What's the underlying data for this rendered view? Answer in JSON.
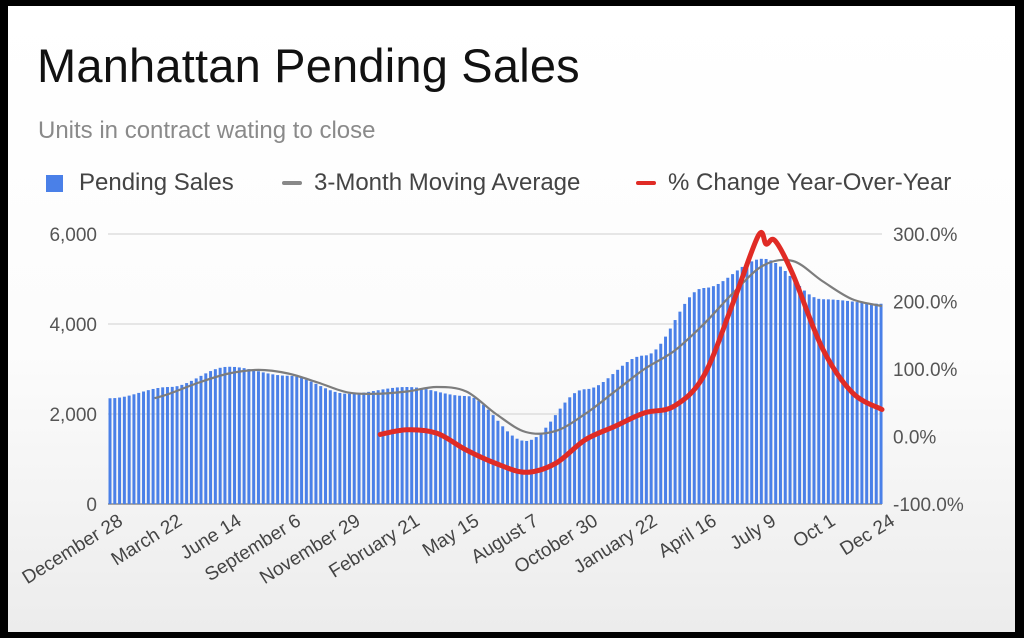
{
  "title": "Manhattan Pending Sales",
  "subtitle": "Units in contract wating to close",
  "legend": [
    {
      "label": "Pending Sales",
      "color": "#4a80e8"
    },
    {
      "label": "3-Month Moving Average",
      "color": "#888888"
    },
    {
      "label": "% Change Year-Over-Year",
      "color": "#e02b25"
    }
  ],
  "chart_data": {
    "type": "bar",
    "x_tick_labels": [
      "December 28",
      "March 22",
      "June 14",
      "September 6",
      "November 29",
      "February 21",
      "May 15",
      "August 7",
      "October 30",
      "January 22",
      "April 16",
      "July 9",
      "Oct 1",
      "Dec 24"
    ],
    "y_left": {
      "ticks": [
        "0",
        "2,000",
        "4,000",
        "6,000"
      ],
      "range": [
        0,
        6000
      ]
    },
    "y_right": {
      "ticks": [
        "-100.0%",
        "0.0%",
        "100.0%",
        "200.0%",
        "300.0%"
      ],
      "range": [
        -100,
        300
      ]
    },
    "grid": true,
    "legend_position": "top",
    "series": [
      {
        "name": "Pending Sales",
        "type": "bar",
        "axis": "left",
        "x": [
          0,
          1,
          2,
          3,
          4,
          5,
          6,
          7,
          8,
          9,
          10,
          11,
          12,
          13
        ],
        "values": [
          2350,
          2600,
          3050,
          2850,
          2450,
          2600,
          2400,
          1400,
          2550,
          3300,
          4800,
          5450,
          4550,
          4450
        ]
      },
      {
        "name": "3-Month Moving Average",
        "type": "line",
        "axis": "left",
        "x": [
          0.75,
          1,
          1.5,
          2,
          2.5,
          3,
          3.5,
          4,
          4.5,
          5,
          5.5,
          6,
          6.5,
          7,
          7.5,
          8,
          8.5,
          9,
          9.5,
          10,
          10.5,
          11,
          11.5,
          12,
          12.5,
          13
        ],
        "values": [
          2350,
          2450,
          2700,
          2900,
          2980,
          2900,
          2700,
          2480,
          2450,
          2500,
          2600,
          2500,
          2000,
          1600,
          1620,
          2000,
          2500,
          3000,
          3400,
          4000,
          4700,
          5300,
          5400,
          4950,
          4550,
          4400
        ]
      },
      {
        "name": "% Change Year-Over-Year",
        "type": "line",
        "axis": "right",
        "x": [
          4.55,
          5,
          5.5,
          6,
          6.5,
          7,
          7.5,
          8,
          8.5,
          9,
          9.5,
          10,
          10.5,
          10.92,
          11.05,
          11.2,
          11.5,
          12,
          12.5,
          13
        ],
        "values": [
          3,
          10,
          5,
          -20,
          -40,
          -53,
          -40,
          -5,
          15,
          35,
          45,
          90,
          200,
          298,
          285,
          290,
          240,
          130,
          65,
          40
        ]
      }
    ]
  }
}
